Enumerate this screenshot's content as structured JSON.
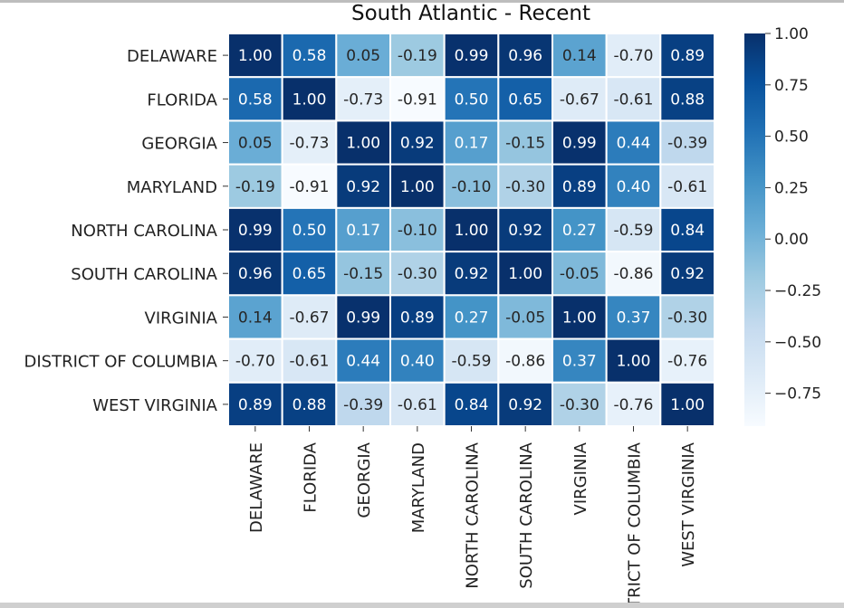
{
  "chart_data": {
    "type": "heatmap",
    "title": "South Atlantic - Recent",
    "rows": [
      "DELAWARE",
      "FLORIDA",
      "GEORGIA",
      "MARYLAND",
      "NORTH CAROLINA",
      "SOUTH CAROLINA",
      "VIRGINIA",
      "DISTRICT OF COLUMBIA",
      "WEST VIRGINIA"
    ],
    "columns": [
      "DELAWARE",
      "FLORIDA",
      "GEORGIA",
      "MARYLAND",
      "NORTH CAROLINA",
      "SOUTH CAROLINA",
      "VIRGINIA",
      "DISTRICT OF COLUMBIA",
      "WEST VIRGINIA"
    ],
    "values": [
      [
        1.0,
        0.58,
        0.05,
        -0.19,
        0.99,
        0.96,
        0.14,
        -0.7,
        0.89
      ],
      [
        0.58,
        1.0,
        -0.73,
        -0.91,
        0.5,
        0.65,
        -0.67,
        -0.61,
        0.88
      ],
      [
        0.05,
        -0.73,
        1.0,
        0.92,
        0.17,
        -0.15,
        0.99,
        0.44,
        -0.39
      ],
      [
        -0.19,
        -0.91,
        0.92,
        1.0,
        -0.1,
        -0.3,
        0.89,
        0.4,
        -0.61
      ],
      [
        0.99,
        0.5,
        0.17,
        -0.1,
        1.0,
        0.92,
        0.27,
        -0.59,
        0.84
      ],
      [
        0.96,
        0.65,
        -0.15,
        -0.3,
        0.92,
        1.0,
        -0.05,
        -0.86,
        0.92
      ],
      [
        0.14,
        -0.67,
        0.99,
        0.89,
        0.27,
        -0.05,
        1.0,
        0.37,
        -0.3
      ],
      [
        -0.7,
        -0.61,
        0.44,
        0.4,
        -0.59,
        -0.86,
        0.37,
        1.0,
        -0.76
      ],
      [
        0.89,
        0.88,
        -0.39,
        -0.61,
        0.84,
        0.92,
        -0.3,
        -0.76,
        1.0
      ]
    ],
    "colorbar": {
      "colormap": "Blues",
      "vmin": -0.91,
      "vmax": 1.0,
      "ticks": [
        1.0,
        0.75,
        0.5,
        0.25,
        0.0,
        -0.25,
        -0.5,
        -0.75
      ],
      "tick_labels": [
        "1.00",
        "0.75",
        "0.50",
        "0.25",
        "0.00",
        "−0.25",
        "−0.50",
        "−0.75"
      ]
    },
    "annotation_format": "2 decimals",
    "grid": "white cell separators"
  }
}
